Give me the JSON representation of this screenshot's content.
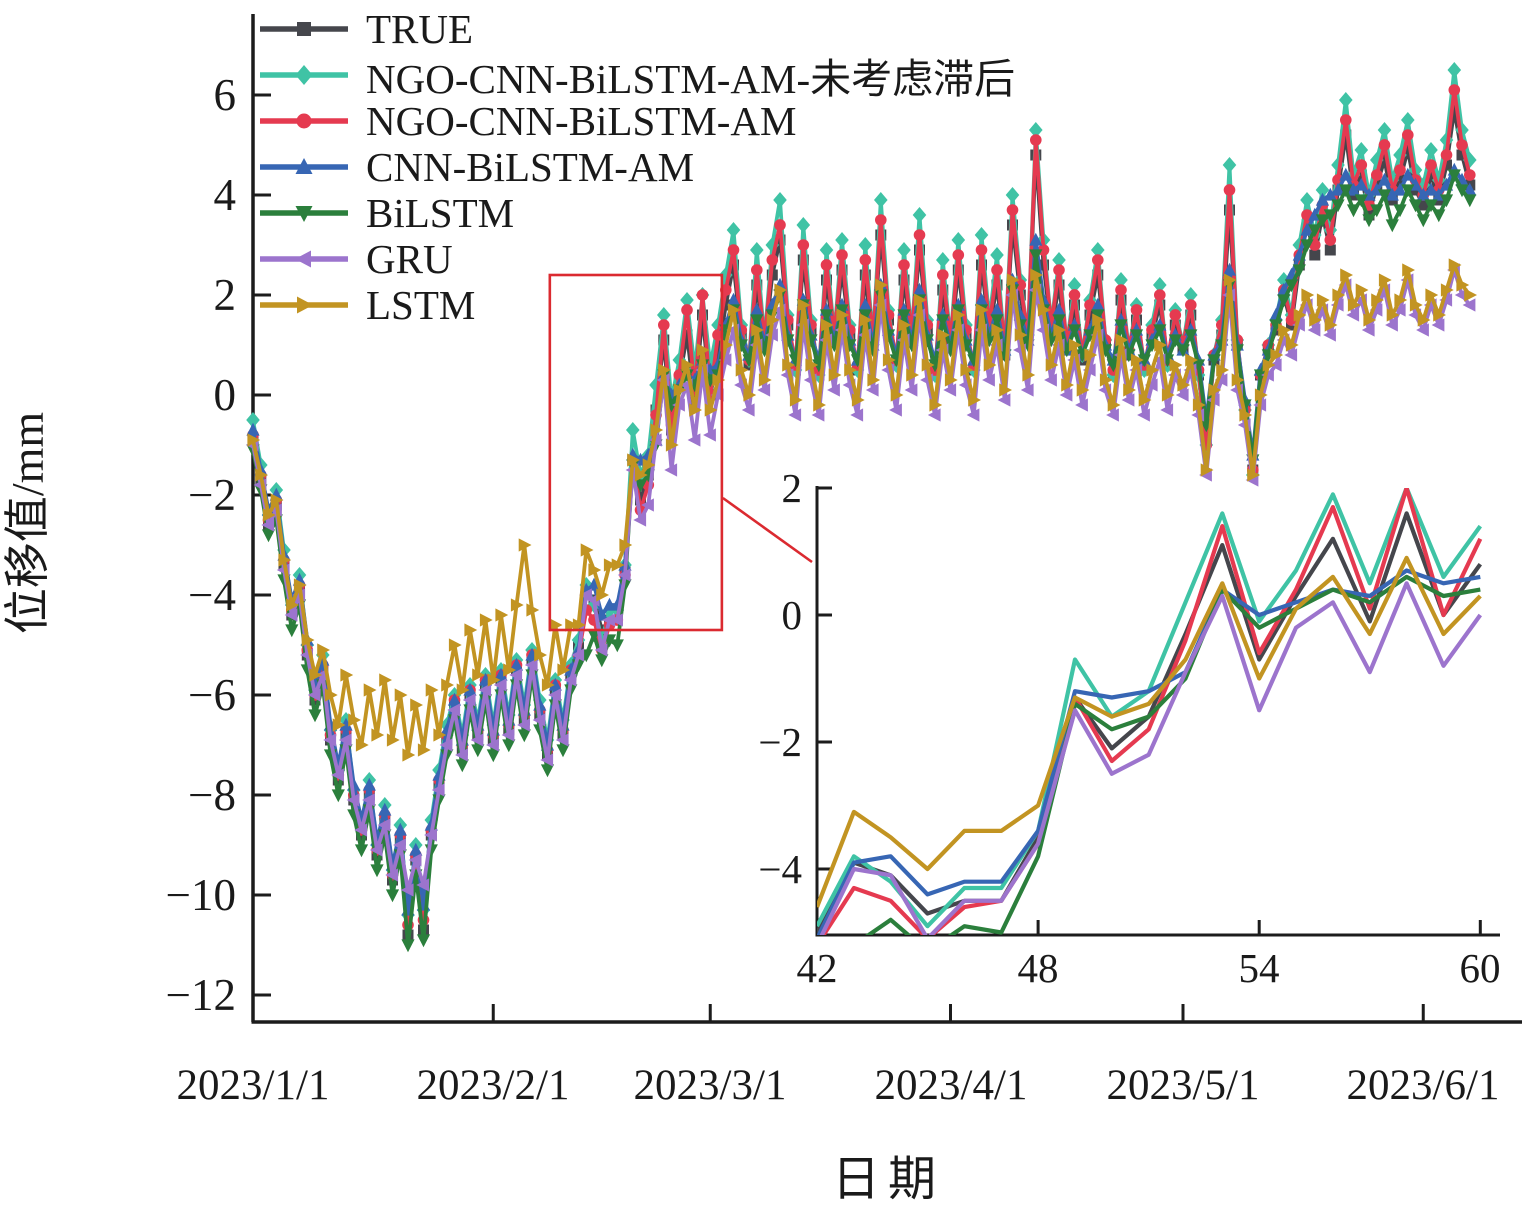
{
  "chart_data": {
    "type": "line",
    "title": "",
    "xlabel": "日期",
    "ylabel": "位移值/mm",
    "grid": false,
    "legend_position": "top-left",
    "x_unit": "days since 2023/1/1, one point per day",
    "x_range": [
      0,
      157
    ],
    "ylim": [
      -12.5,
      7.5
    ],
    "x_tick_days": [
      0,
      31,
      59,
      90,
      120,
      151
    ],
    "x_tick_labels": [
      "2023/1/1",
      "2023/2/1",
      "2023/3/1",
      "2023/4/1",
      "2023/5/1",
      "2023/6/1"
    ],
    "y_tick_values": [
      6,
      4,
      2,
      0,
      -2,
      -4,
      -6,
      -8,
      -10,
      -12
    ],
    "y_tick_labels": [
      "6",
      "4",
      "2",
      "0",
      "−2",
      "−4",
      "−6",
      "−8",
      "−10",
      "−12"
    ],
    "series": [
      {
        "name": "TRUE",
        "color": "#45464c",
        "marker": "square",
        "values": [
          -0.9,
          -1.7,
          -2.6,
          -2.2,
          -3.4,
          -4.4,
          -3.9,
          -5.2,
          -6.1,
          -5.5,
          -6.9,
          -7.7,
          -6.8,
          -8.1,
          -8.8,
          -8.0,
          -9.2,
          -8.5,
          -9.7,
          -8.9,
          -10.8,
          -9.3,
          -10.7,
          -8.8,
          -7.8,
          -6.9,
          -6.2,
          -7.1,
          -6.0,
          -6.8,
          -5.8,
          -6.9,
          -5.7,
          -6.7,
          -5.5,
          -6.5,
          -5.3,
          -6.4,
          -7.2,
          -5.9,
          -6.8,
          -5.6,
          -5.0,
          -3.9,
          -4.1,
          -4.7,
          -4.5,
          -4.5,
          -3.5,
          -1.3,
          -2.1,
          -1.6,
          -0.3,
          1.1,
          -0.7,
          0.3,
          1.2,
          -0.1,
          1.6,
          0.0,
          0.8,
          1.8,
          2.6,
          1.2,
          0.6,
          2.2,
          1.0,
          2.4,
          3.1,
          1.4,
          0.5,
          2.7,
          1.3,
          0.4,
          2.3,
          1.1,
          2.5,
          1.2,
          0.5,
          2.4,
          1.0,
          3.2,
          1.5,
          0.6,
          2.3,
          1.1,
          2.9,
          1.3,
          0.4,
          2.1,
          1.0,
          2.5,
          1.2,
          0.5,
          2.6,
          1.3,
          2.2,
          0.8,
          3.4,
          2.0,
          1.1,
          4.8,
          2.6,
          1.3,
          2.2,
          0.9,
          1.8,
          0.7,
          1.6,
          2.4,
          1.0,
          0.4,
          1.9,
          0.8,
          1.5,
          0.5,
          1.2,
          1.8,
          0.6,
          1.4,
          0.9,
          1.6,
          0.4,
          -0.9,
          0.7,
          1.2,
          3.7,
          1.0,
          -0.2,
          -1.5,
          0.4,
          0.9,
          1.3,
          2.0,
          1.4,
          2.6,
          3.4,
          2.8,
          3.6,
          2.9,
          4.1,
          5.2,
          4.0,
          4.4,
          3.6,
          4.2,
          4.7,
          3.9,
          4.3,
          4.9,
          4.1,
          3.8,
          4.4,
          3.9,
          4.6,
          5.7,
          4.8,
          4.2
        ]
      },
      {
        "name": "NGO-CNN-BiLSTM-AM-未考虑滞后",
        "color": "#3fc3a5",
        "marker": "diamond",
        "values": [
          -0.5,
          -1.4,
          -2.4,
          -1.9,
          -3.1,
          -4.2,
          -3.6,
          -5.0,
          -5.9,
          -5.2,
          -6.7,
          -7.5,
          -6.5,
          -7.9,
          -8.6,
          -7.7,
          -9.0,
          -8.2,
          -9.5,
          -8.6,
          -10.4,
          -9.0,
          -10.3,
          -8.5,
          -7.5,
          -6.6,
          -6.0,
          -6.8,
          -5.8,
          -6.5,
          -5.6,
          -6.6,
          -5.5,
          -6.4,
          -5.3,
          -6.2,
          -5.1,
          -6.1,
          -6.9,
          -5.7,
          -6.5,
          -5.4,
          -4.9,
          -3.8,
          -4.2,
          -4.9,
          -4.3,
          -4.3,
          -3.4,
          -0.7,
          -1.6,
          -1.2,
          0.2,
          1.6,
          -0.1,
          0.7,
          1.9,
          0.5,
          2.0,
          0.6,
          1.4,
          2.4,
          3.3,
          1.4,
          0.7,
          2.9,
          1.1,
          3.0,
          3.9,
          1.6,
          0.5,
          3.4,
          1.5,
          0.4,
          2.9,
          1.2,
          3.1,
          1.4,
          0.5,
          3.0,
          1.1,
          3.9,
          1.7,
          0.6,
          2.9,
          1.2,
          3.6,
          1.5,
          0.4,
          2.7,
          1.1,
          3.1,
          1.4,
          0.5,
          3.2,
          1.5,
          2.8,
          0.9,
          4.0,
          2.3,
          1.2,
          5.3,
          3.1,
          1.4,
          2.7,
          1.0,
          2.2,
          0.8,
          1.9,
          2.9,
          1.1,
          0.4,
          2.3,
          0.9,
          1.8,
          0.5,
          1.4,
          2.2,
          0.6,
          1.7,
          1.0,
          2.0,
          0.4,
          -1.0,
          0.8,
          1.5,
          4.6,
          1.1,
          -0.3,
          -1.6,
          0.4,
          1.0,
          1.5,
          2.3,
          1.6,
          3.0,
          3.9,
          3.2,
          4.1,
          3.3,
          4.6,
          5.9,
          4.4,
          4.9,
          4.0,
          4.7,
          5.3,
          4.3,
          4.8,
          5.5,
          4.5,
          4.2,
          4.9,
          4.3,
          5.1,
          6.5,
          5.3,
          4.7
        ]
      },
      {
        "name": "NGO-CNN-BiLSTM-AM",
        "color": "#e53a50",
        "marker": "circle",
        "values": [
          -0.8,
          -1.6,
          -2.5,
          -2.1,
          -3.3,
          -4.3,
          -3.8,
          -5.1,
          -6.0,
          -5.4,
          -6.8,
          -7.6,
          -6.7,
          -8.0,
          -8.7,
          -7.9,
          -9.1,
          -8.4,
          -9.6,
          -8.8,
          -10.6,
          -9.2,
          -10.5,
          -8.7,
          -7.7,
          -6.8,
          -6.1,
          -7.0,
          -5.9,
          -6.7,
          -5.7,
          -6.8,
          -5.6,
          -6.6,
          -5.4,
          -6.4,
          -5.2,
          -6.3,
          -7.1,
          -5.8,
          -6.7,
          -5.5,
          -5.2,
          -4.3,
          -4.5,
          -5.1,
          -4.6,
          -4.5,
          -3.6,
          -1.3,
          -2.3,
          -1.8,
          -0.4,
          1.4,
          -0.6,
          0.4,
          1.7,
          0.1,
          2.0,
          0.0,
          1.2,
          2.1,
          2.9,
          1.3,
          0.7,
          2.5,
          1.1,
          2.7,
          3.4,
          1.5,
          0.6,
          3.0,
          1.4,
          0.5,
          2.6,
          1.2,
          2.8,
          1.3,
          0.6,
          2.7,
          1.1,
          3.5,
          1.6,
          0.7,
          2.6,
          1.2,
          3.2,
          1.4,
          0.5,
          2.4,
          1.1,
          2.8,
          1.3,
          0.6,
          2.9,
          1.4,
          2.5,
          0.9,
          3.7,
          2.2,
          1.2,
          5.1,
          2.9,
          1.4,
          2.5,
          1.0,
          2.0,
          0.8,
          1.8,
          2.7,
          1.1,
          0.5,
          2.1,
          0.9,
          1.7,
          0.6,
          1.3,
          2.0,
          0.7,
          1.6,
          1.0,
          1.8,
          0.5,
          -1.0,
          0.8,
          1.4,
          4.1,
          1.1,
          -0.3,
          -1.5,
          0.4,
          1.0,
          1.4,
          2.1,
          1.5,
          2.8,
          3.6,
          3.0,
          3.8,
          3.1,
          4.3,
          5.5,
          4.2,
          4.6,
          3.8,
          4.4,
          5.0,
          4.1,
          4.5,
          5.2,
          4.3,
          4.0,
          4.6,
          4.1,
          4.8,
          6.1,
          5.0,
          4.4
        ]
      },
      {
        "name": "CNN-BiLSTM-AM",
        "color": "#3766b4",
        "marker": "triangle-up",
        "values": [
          -0.7,
          -1.5,
          -2.3,
          -2.0,
          -3.2,
          -4.1,
          -3.7,
          -4.9,
          -5.8,
          -5.3,
          -6.6,
          -7.4,
          -6.6,
          -7.8,
          -8.5,
          -7.8,
          -8.9,
          -8.3,
          -9.4,
          -8.7,
          -10.3,
          -9.1,
          -10.2,
          -8.6,
          -7.6,
          -6.7,
          -6.1,
          -6.9,
          -5.9,
          -6.6,
          -5.7,
          -6.7,
          -5.6,
          -6.5,
          -5.4,
          -6.3,
          -5.2,
          -6.2,
          -7.0,
          -5.8,
          -6.6,
          -5.5,
          -5.1,
          -3.9,
          -3.8,
          -4.4,
          -4.2,
          -4.2,
          -3.4,
          -1.2,
          -1.3,
          -1.2,
          -0.9,
          0.4,
          0.0,
          0.2,
          0.4,
          0.3,
          0.7,
          0.5,
          0.6,
          1.4,
          1.9,
          1.1,
          0.8,
          1.7,
          1.0,
          1.8,
          2.2,
          1.2,
          0.7,
          1.9,
          1.2,
          0.7,
          1.7,
          1.1,
          1.8,
          1.1,
          0.7,
          1.8,
          1.0,
          2.2,
          1.3,
          0.8,
          1.7,
          1.1,
          2.1,
          1.2,
          0.7,
          1.6,
          1.0,
          1.8,
          1.1,
          0.7,
          1.9,
          1.2,
          1.7,
          0.9,
          2.3,
          1.6,
          1.1,
          3.1,
          1.9,
          1.2,
          1.7,
          0.9,
          1.4,
          0.8,
          1.3,
          1.8,
          1.0,
          0.7,
          1.5,
          0.9,
          1.3,
          0.7,
          1.1,
          1.4,
          0.8,
          1.2,
          0.9,
          1.3,
          0.7,
          -0.5,
          0.8,
          1.1,
          2.5,
          1.0,
          -0.1,
          -1.2,
          0.5,
          0.9,
          1.6,
          2.1,
          2.4,
          2.8,
          3.3,
          3.6,
          3.9,
          4.0,
          4.1,
          4.4,
          4.1,
          4.2,
          4.0,
          4.1,
          4.3,
          4.0,
          4.1,
          4.4,
          4.2,
          4.0,
          4.1,
          4.0,
          4.2,
          4.5,
          4.3,
          4.1
        ]
      },
      {
        "name": "BiLSTM",
        "color": "#2b7f3c",
        "marker": "triangle-down",
        "values": [
          -1.1,
          -1.9,
          -2.8,
          -2.5,
          -3.7,
          -4.7,
          -4.2,
          -5.5,
          -6.4,
          -5.8,
          -7.2,
          -8.0,
          -7.1,
          -8.4,
          -9.1,
          -8.3,
          -9.5,
          -8.8,
          -10.0,
          -9.2,
          -11.0,
          -9.6,
          -10.9,
          -9.1,
          -8.1,
          -7.2,
          -6.5,
          -7.4,
          -6.3,
          -7.1,
          -6.1,
          -7.2,
          -6.0,
          -7.0,
          -5.8,
          -6.8,
          -5.6,
          -6.7,
          -7.5,
          -6.2,
          -7.1,
          -5.9,
          -5.4,
          -5.2,
          -4.8,
          -5.3,
          -4.9,
          -5.0,
          -3.8,
          -1.4,
          -1.8,
          -1.6,
          -1.0,
          0.4,
          -0.2,
          0.1,
          0.4,
          0.2,
          0.6,
          0.3,
          0.4,
          1.3,
          1.7,
          1.0,
          0.7,
          1.5,
          0.9,
          1.6,
          2.0,
          1.1,
          0.7,
          1.8,
          1.1,
          0.6,
          1.6,
          1.0,
          1.7,
          1.0,
          0.7,
          1.6,
          0.9,
          2.0,
          1.2,
          0.7,
          1.6,
          1.0,
          1.9,
          1.1,
          0.6,
          1.5,
          0.9,
          1.7,
          1.0,
          0.7,
          1.7,
          1.1,
          1.5,
          0.8,
          2.1,
          1.4,
          1.0,
          2.8,
          1.7,
          1.1,
          1.5,
          0.9,
          1.3,
          0.8,
          1.2,
          1.6,
          0.9,
          0.6,
          1.4,
          0.8,
          1.2,
          0.7,
          1.0,
          1.3,
          0.7,
          1.1,
          0.9,
          1.2,
          0.6,
          -0.6,
          0.7,
          1.0,
          2.2,
          0.9,
          -0.2,
          -1.3,
          0.4,
          0.8,
          1.4,
          1.9,
          2.2,
          2.5,
          3.0,
          3.3,
          3.5,
          3.6,
          3.8,
          4.1,
          3.7,
          3.9,
          3.5,
          3.7,
          4.0,
          3.4,
          3.7,
          4.1,
          3.8,
          3.5,
          3.8,
          3.6,
          3.9,
          4.4,
          4.1,
          3.9
        ]
      },
      {
        "name": "GRU",
        "color": "#9c74cd",
        "marker": "triangle-left",
        "values": [
          -1.0,
          -1.8,
          -2.6,
          -2.3,
          -3.5,
          -4.4,
          -4.0,
          -5.2,
          -6.0,
          -5.6,
          -6.9,
          -7.6,
          -6.9,
          -8.1,
          -8.7,
          -8.1,
          -9.1,
          -8.6,
          -9.6,
          -9.0,
          -9.9,
          -9.3,
          -9.8,
          -8.8,
          -7.9,
          -7.0,
          -6.3,
          -7.2,
          -6.1,
          -6.9,
          -5.9,
          -7.0,
          -5.8,
          -6.8,
          -5.6,
          -6.6,
          -5.4,
          -6.5,
          -7.3,
          -6.0,
          -6.9,
          -5.7,
          -5.2,
          -4.0,
          -4.1,
          -5.1,
          -4.5,
          -4.5,
          -3.6,
          -1.5,
          -2.5,
          -2.2,
          -0.9,
          0.3,
          -1.5,
          -0.2,
          0.2,
          -0.9,
          0.5,
          -0.8,
          0.0,
          0.7,
          1.3,
          0.2,
          -0.3,
          1.0,
          0.1,
          1.2,
          1.7,
          0.4,
          -0.4,
          1.4,
          0.3,
          -0.4,
          1.1,
          0.1,
          1.3,
          0.2,
          -0.4,
          1.2,
          0.1,
          1.8,
          0.5,
          -0.3,
          1.1,
          0.1,
          1.6,
          0.3,
          -0.4,
          0.9,
          0.1,
          1.3,
          0.2,
          -0.4,
          1.3,
          0.3,
          1.0,
          -0.1,
          2.0,
          0.9,
          0.1,
          2.1,
          1.3,
          0.3,
          1.0,
          0.0,
          0.7,
          -0.2,
          0.5,
          1.2,
          0.1,
          -0.4,
          0.8,
          -0.1,
          0.5,
          -0.4,
          0.2,
          0.7,
          -0.3,
          0.4,
          0.0,
          0.5,
          -0.4,
          -1.6,
          -0.1,
          0.3,
          2.0,
          0.1,
          -0.6,
          -1.7,
          -0.2,
          0.4,
          0.6,
          1.1,
          0.8,
          1.4,
          1.8,
          1.3,
          1.7,
          1.2,
          1.8,
          2.2,
          1.6,
          1.9,
          1.3,
          1.7,
          2.1,
          1.4,
          1.7,
          2.3,
          1.6,
          1.3,
          1.8,
          1.4,
          1.9,
          2.5,
          2.0,
          1.8
        ]
      },
      {
        "name": "LSTM",
        "color": "#c29422",
        "marker": "triangle-right",
        "values": [
          -0.9,
          -1.6,
          -2.4,
          -2.1,
          -3.3,
          -4.2,
          -3.8,
          -4.9,
          -5.6,
          -5.1,
          -6.0,
          -6.6,
          -5.6,
          -6.5,
          -7.0,
          -5.9,
          -6.8,
          -5.7,
          -6.9,
          -6.0,
          -7.2,
          -6.2,
          -7.1,
          -5.9,
          -6.8,
          -5.8,
          -5.0,
          -5.9,
          -4.7,
          -5.6,
          -4.5,
          -5.7,
          -4.4,
          -5.5,
          -4.2,
          -3.0,
          -4.3,
          -5.2,
          -5.8,
          -4.6,
          -5.5,
          -4.6,
          -4.6,
          -3.1,
          -3.5,
          -4.0,
          -3.4,
          -3.4,
          -3.0,
          -1.3,
          -1.6,
          -1.4,
          -0.7,
          0.5,
          -1.0,
          0.1,
          0.6,
          -0.3,
          0.9,
          -0.3,
          0.3,
          1.0,
          1.7,
          0.5,
          0.0,
          1.3,
          0.3,
          1.5,
          2.1,
          0.6,
          -0.1,
          1.8,
          0.6,
          -0.2,
          1.4,
          0.4,
          1.6,
          0.5,
          -0.1,
          1.5,
          0.3,
          2.2,
          0.7,
          0.0,
          1.4,
          0.4,
          1.9,
          0.6,
          -0.2,
          1.2,
          0.3,
          1.6,
          0.5,
          -0.1,
          1.7,
          0.6,
          1.3,
          0.1,
          2.3,
          1.2,
          0.4,
          2.4,
          1.7,
          0.6,
          1.3,
          0.2,
          1.0,
          0.1,
          0.8,
          1.5,
          0.3,
          -0.2,
          1.1,
          0.1,
          0.7,
          -0.1,
          0.5,
          1.0,
          0.0,
          0.6,
          0.2,
          0.7,
          -0.2,
          -1.5,
          0.1,
          0.5,
          2.3,
          0.3,
          -0.4,
          -1.6,
          0.0,
          0.6,
          0.8,
          1.3,
          1.0,
          1.6,
          2.0,
          1.5,
          1.9,
          1.4,
          2.0,
          2.4,
          1.8,
          2.1,
          1.5,
          1.9,
          2.3,
          1.6,
          1.9,
          2.5,
          1.8,
          1.5,
          2.0,
          1.6,
          2.1,
          2.6,
          2.2,
          2.0
        ]
      }
    ],
    "inset": {
      "description": "zoom of days 42-60 of the same series, lines without markers",
      "x_range": [
        42,
        60
      ],
      "ylim": [
        -5.05,
        2
      ],
      "x_tick_days": [
        42,
        48,
        54,
        60
      ],
      "x_tick_labels": [
        "42",
        "48",
        "54",
        "60"
      ],
      "y_tick_values": [
        2,
        0,
        -2,
        -4
      ],
      "y_tick_labels": [
        "2",
        "0",
        "−2",
        "−4"
      ]
    },
    "zoom_rect": {
      "day_range": [
        38.3,
        60.5
      ],
      "value_range": [
        -4.7,
        2.4
      ],
      "color": "#db2a30"
    }
  }
}
